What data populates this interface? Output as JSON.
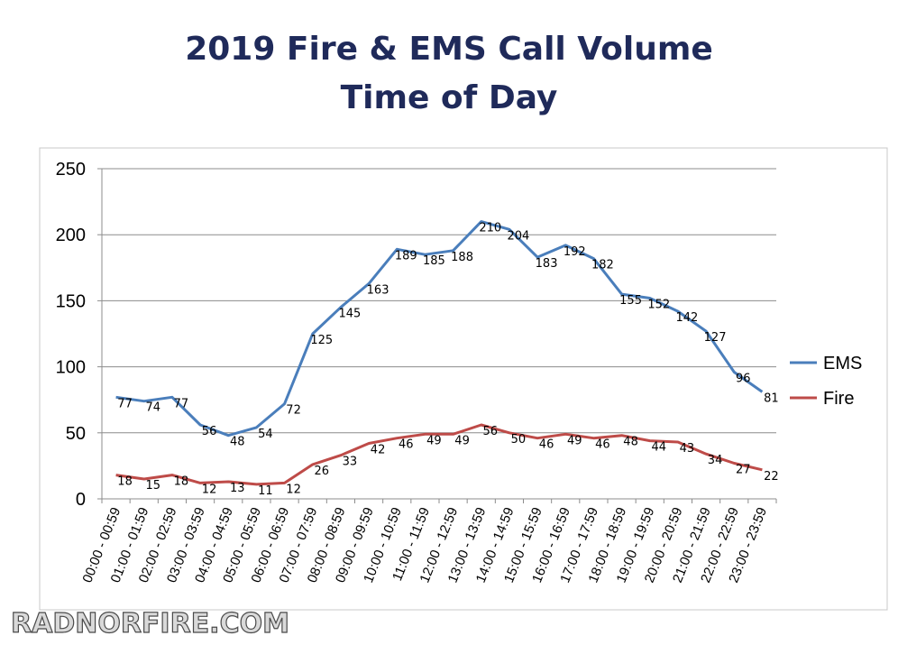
{
  "chart_data": {
    "type": "line",
    "title": "2019 Fire & EMS Call Volume",
    "subtitle": "Time of Day",
    "xlabel": "",
    "ylabel": "",
    "ylim": [
      0,
      250
    ],
    "yticks": [
      0,
      50,
      100,
      150,
      200,
      250
    ],
    "grid": true,
    "legend_position": "right",
    "categories": [
      "00:00 - 00:59",
      "01:00 - 01:59",
      "02:00 - 02:59",
      "03:00 - 03:59",
      "04:00 - 04:59",
      "05:00 - 05:59",
      "06:00 - 06:59",
      "07:00 - 07:59",
      "08:00 - 08:59",
      "09:00 - 09:59",
      "10:00 - 10:59",
      "11:00 - 11:59",
      "12:00 - 12:59",
      "13:00 - 13:59",
      "14:00 - 14:59",
      "15:00 - 15:59",
      "16:00 - 16:59",
      "17:00 - 17:59",
      "18:00 - 18:59",
      "19:00 - 19:59",
      "20:00 - 20:59",
      "21:00 - 21:59",
      "22:00 - 22:59",
      "23:00 - 23:59"
    ],
    "series": [
      {
        "name": "EMS",
        "color": "#4a7ebb",
        "values": [
          77,
          74,
          77,
          56,
          48,
          54,
          72,
          125,
          145,
          163,
          189,
          185,
          188,
          210,
          204,
          183,
          192,
          182,
          155,
          152,
          142,
          127,
          96,
          81
        ]
      },
      {
        "name": "Fire",
        "color": "#be4b48",
        "values": [
          18,
          15,
          18,
          12,
          13,
          11,
          12,
          26,
          33,
          42,
          46,
          49,
          49,
          56,
          50,
          46,
          49,
          46,
          48,
          44,
          43,
          34,
          27,
          22
        ]
      }
    ]
  },
  "watermark": "RADNORFIRE.COM"
}
